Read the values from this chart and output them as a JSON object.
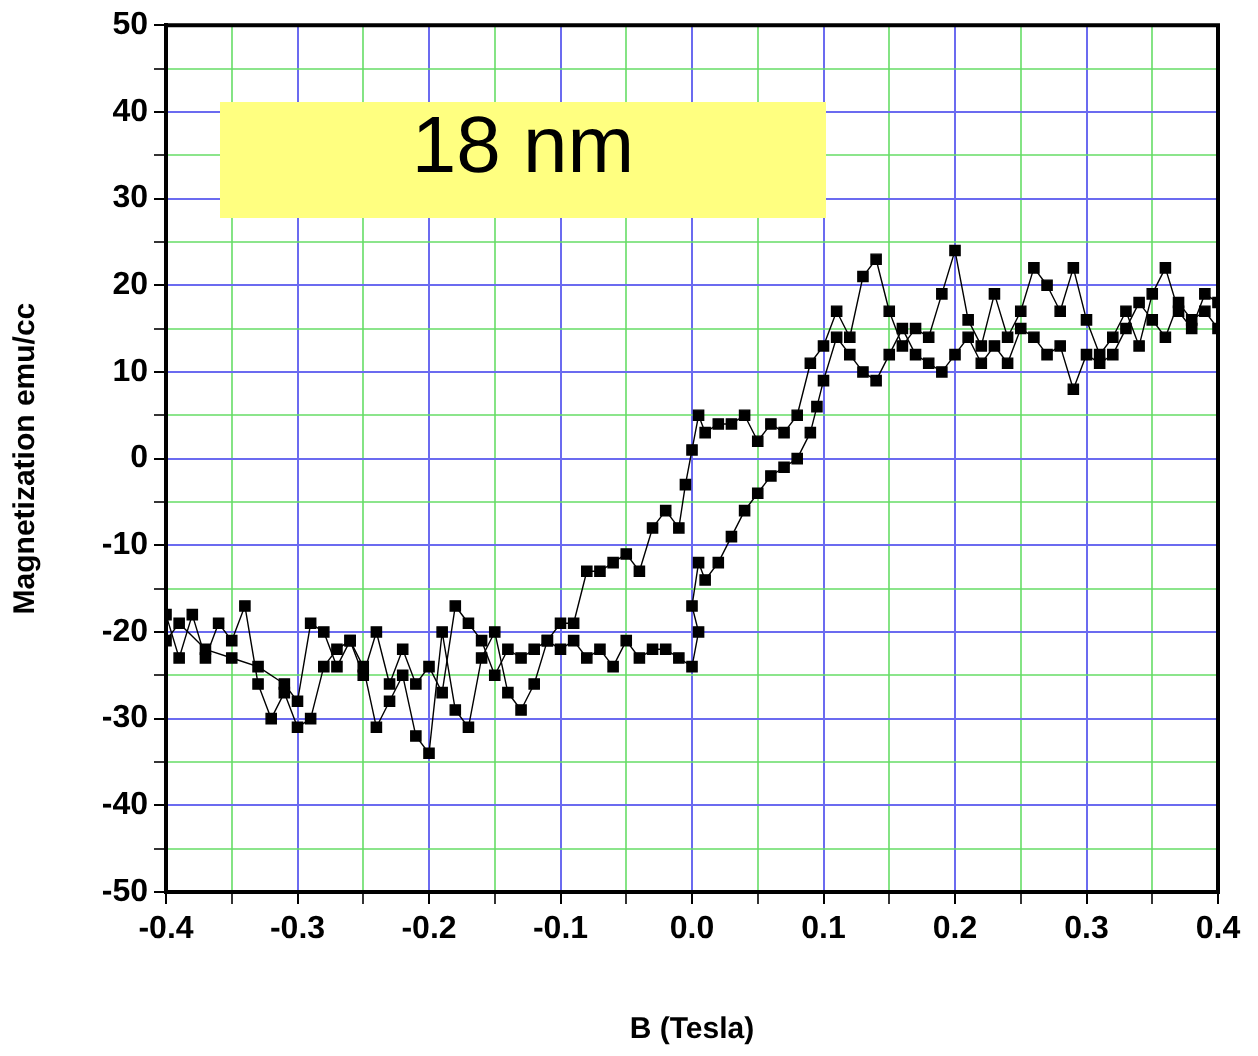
{
  "chart_data": {
    "type": "line",
    "xlabel": "B (Tesla)",
    "ylabel": "Magnetization emu/cc",
    "annotations": [
      "18 nm"
    ],
    "xlim": [
      -0.4,
      0.4
    ],
    "ylim": [
      -50,
      50
    ],
    "xticks": [
      -0.4,
      {
        "value": -0.35,
        "label": null
      },
      -0.3,
      {
        "value": -0.25,
        "label": null
      },
      -0.2,
      {
        "value": -0.15,
        "label": null
      },
      -0.1,
      {
        "value": -0.05,
        "label": null
      },
      {
        "value": 0,
        "label": "0.0"
      },
      {
        "value": 0.05,
        "label": null
      },
      0.1,
      {
        "value": 0.15,
        "label": null
      },
      0.2,
      {
        "value": 0.25,
        "label": null
      },
      0.3,
      {
        "value": 0.35,
        "label": null
      },
      0.4
    ],
    "yticks": [
      -50,
      {
        "value": -45,
        "label": null
      },
      -40,
      {
        "value": -35,
        "label": null
      },
      -30,
      {
        "value": -25,
        "label": null
      },
      -20,
      {
        "value": -15,
        "label": null
      },
      -10,
      {
        "value": -5,
        "label": null
      },
      0,
      {
        "value": 5,
        "label": null
      },
      10,
      {
        "value": 15,
        "label": null
      },
      20,
      {
        "value": 25,
        "label": null
      },
      30,
      {
        "value": 35,
        "label": null
      },
      40,
      {
        "value": 45,
        "label": null
      },
      50
    ],
    "grid": true,
    "legend": false,
    "marker": "square",
    "line_style": "solid",
    "series": [
      {
        "color": "#000000",
        "x": [
          0.4,
          0.39,
          0.38,
          0.37,
          0.36,
          0.35,
          0.34,
          0.33,
          0.32,
          0.31,
          0.3,
          0.29,
          0.28,
          0.27,
          0.26,
          0.25,
          0.24,
          0.23,
          0.22,
          0.21,
          0.2,
          0.19,
          0.18,
          0.17,
          0.16,
          0.15,
          0.14,
          0.13,
          0.12,
          0.11,
          0.1,
          0.09,
          0.08,
          0.07,
          0.06,
          0.05,
          0.04,
          0.03,
          0.02,
          0.01,
          0.005,
          0,
          -0.005,
          -0.01,
          -0.02,
          -0.03,
          -0.04,
          -0.05,
          -0.06,
          -0.07,
          -0.08,
          -0.09,
          -0.1,
          -0.11,
          -0.12,
          -0.13,
          -0.14,
          -0.15,
          -0.16,
          -0.17,
          -0.18,
          -0.19,
          -0.2,
          -0.21,
          -0.22,
          -0.23,
          -0.24,
          -0.25,
          -0.26,
          -0.27,
          -0.28,
          -0.29,
          -0.3,
          -0.31,
          -0.32,
          -0.33,
          -0.34,
          -0.35,
          -0.36,
          -0.37,
          -0.38,
          -0.39,
          -0.4
        ],
        "values": [
          18,
          19,
          15,
          17,
          22,
          19,
          13,
          17,
          14,
          12,
          16,
          22,
          17,
          20,
          22,
          17,
          14,
          19,
          13,
          16,
          24,
          19,
          14,
          15,
          13,
          17,
          23,
          21,
          14,
          17,
          13,
          11,
          5,
          3,
          4,
          2,
          5,
          4,
          4,
          3,
          5,
          1,
          -3,
          -8,
          -6,
          -8,
          -13,
          -11,
          -12,
          -13,
          -13,
          -19,
          -19,
          -21,
          -26,
          -29,
          -27,
          -20,
          -23,
          -31,
          -29,
          -20,
          -34,
          -32,
          -25,
          -28,
          -31,
          -24,
          -21,
          -22,
          -24,
          -30,
          -31,
          -27,
          -30,
          -26,
          -17,
          -21,
          -19,
          -23,
          -18,
          -23,
          -18
        ]
      },
      {
        "color": "#000000",
        "x": [
          -0.4,
          -0.39,
          -0.37,
          -0.35,
          -0.33,
          -0.31,
          -0.3,
          -0.29,
          -0.28,
          -0.27,
          -0.26,
          -0.25,
          -0.24,
          -0.23,
          -0.22,
          -0.21,
          -0.2,
          -0.19,
          -0.18,
          -0.17,
          -0.16,
          -0.15,
          -0.14,
          -0.13,
          -0.12,
          -0.11,
          -0.1,
          -0.09,
          -0.08,
          -0.07,
          -0.06,
          -0.05,
          -0.04,
          -0.03,
          -0.02,
          -0.01,
          0,
          0.005,
          0,
          0.005,
          0.01,
          0.02,
          0.03,
          0.04,
          0.05,
          0.06,
          0.07,
          0.08,
          0.09,
          0.095,
          0.1,
          0.11,
          0.12,
          0.13,
          0.14,
          0.15,
          0.16,
          0.17,
          0.18,
          0.19,
          0.2,
          0.21,
          0.22,
          0.23,
          0.24,
          0.25,
          0.26,
          0.27,
          0.28,
          0.29,
          0.3,
          0.31,
          0.32,
          0.33,
          0.34,
          0.35,
          0.36,
          0.37,
          0.38,
          0.39,
          0.4
        ],
        "values": [
          -21,
          -19,
          -22,
          -23,
          -24,
          -26,
          -28,
          -19,
          -20,
          -24,
          -21,
          -25,
          -20,
          -26,
          -22,
          -26,
          -24,
          -27,
          -17,
          -19,
          -21,
          -25,
          -22,
          -23,
          -22,
          -21,
          -22,
          -21,
          -23,
          -22,
          -24,
          -21,
          -23,
          -22,
          -22,
          -23,
          -24,
          -20,
          -17,
          -12,
          -14,
          -12,
          -9,
          -6,
          -4,
          -2,
          -1,
          0,
          3,
          6,
          9,
          14,
          12,
          10,
          9,
          12,
          15,
          12,
          11,
          10,
          12,
          14,
          11,
          13,
          11,
          15,
          14,
          12,
          13,
          8,
          12,
          11,
          12,
          15,
          18,
          16,
          14,
          18,
          16,
          17,
          15
        ]
      }
    ]
  }
}
